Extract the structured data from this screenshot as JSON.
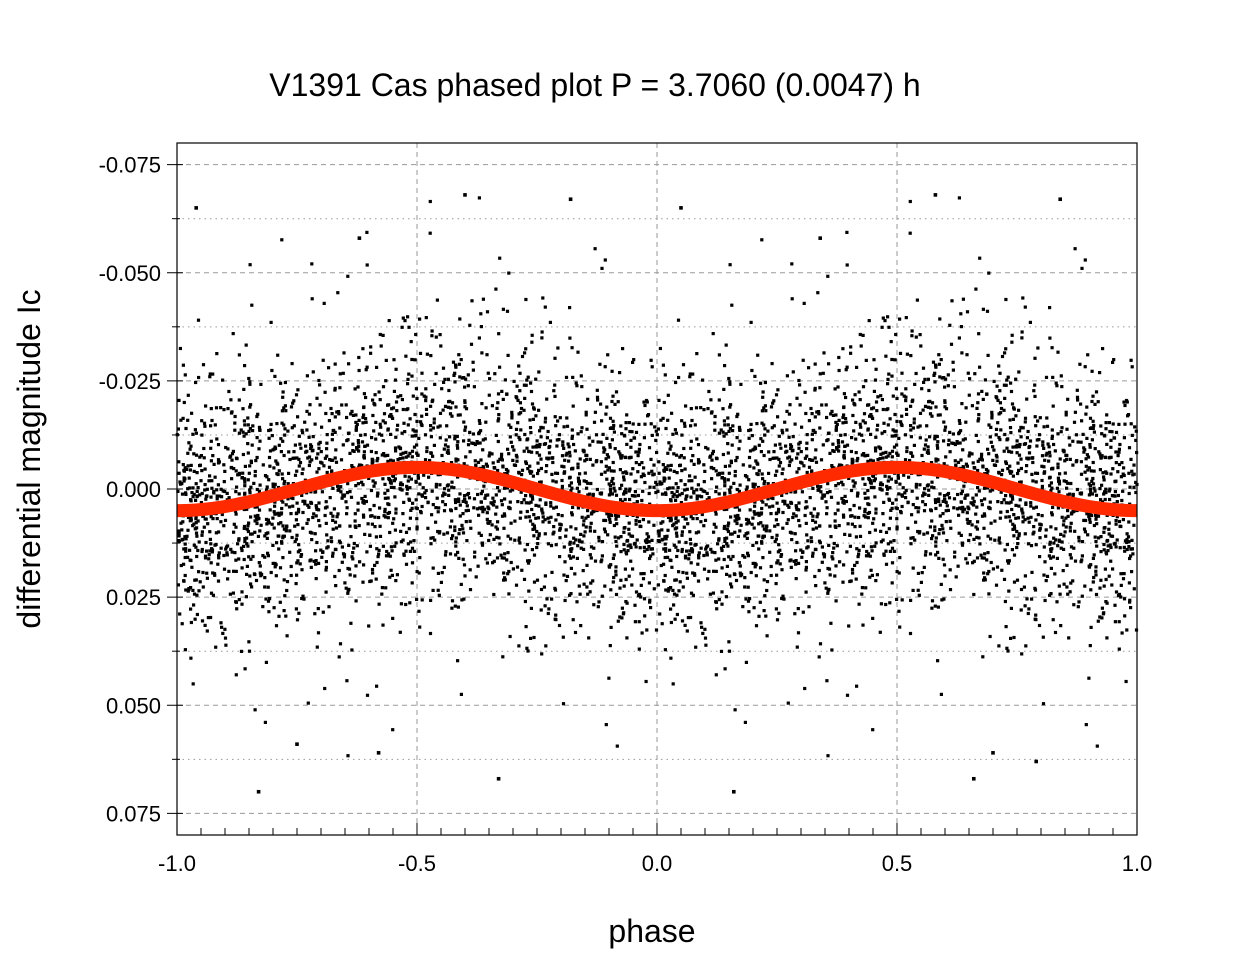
{
  "chart_data": {
    "type": "scatter",
    "title": "V1391 Cas phased plot  P = 3.7060 (0.0047) h",
    "xlabel": "phase",
    "ylabel": "differential magnitude  Ic",
    "xlim": [
      -1.0,
      1.0
    ],
    "ylim": [
      0.08,
      -0.08
    ],
    "y_inverted": true,
    "x_ticks": [
      -1.0,
      -0.5,
      0.0,
      0.5,
      1.0
    ],
    "x_tick_labels": [
      "-1.0",
      "-0.5",
      "0.0",
      "0.5",
      "1.0"
    ],
    "y_ticks": [
      -0.075,
      -0.05,
      -0.025,
      0.0,
      0.025,
      0.05,
      0.075
    ],
    "y_tick_labels": [
      "-0.075",
      "-0.050",
      "-0.025",
      "0.000",
      "0.025",
      "0.050",
      "0.075"
    ],
    "grid": true,
    "series": [
      {
        "kind": "points",
        "color": "#000000",
        "description_of_distribution": "dense cloud of individual measurements, scatter about zero with spread roughly -0.06 to +0.07",
        "sample_points": [
          [
            -0.96,
            -0.065
          ],
          [
            -0.62,
            -0.058
          ],
          [
            -0.4,
            -0.068
          ],
          [
            -0.18,
            -0.067
          ],
          [
            0.05,
            -0.065
          ],
          [
            0.58,
            -0.068
          ],
          [
            0.84,
            -0.067
          ],
          [
            0.34,
            -0.058
          ],
          [
            -0.83,
            0.07
          ],
          [
            -0.33,
            0.067
          ],
          [
            0.16,
            0.07
          ],
          [
            0.66,
            0.067
          ],
          [
            -0.75,
            0.059
          ],
          [
            -0.58,
            0.061
          ],
          [
            0.7,
            0.061
          ],
          [
            0.79,
            0.063
          ]
        ]
      },
      {
        "kind": "fit",
        "color": "#ff2a00",
        "model": "cosine",
        "mean": 0.0,
        "amplitude": 0.005,
        "period_in_phase": 1.0,
        "peak_phase": 0.0
      }
    ]
  },
  "colors": {
    "points": "#000000",
    "fit": "#ff2a00",
    "grid": "#9a9a9a",
    "frame": "#000000"
  }
}
